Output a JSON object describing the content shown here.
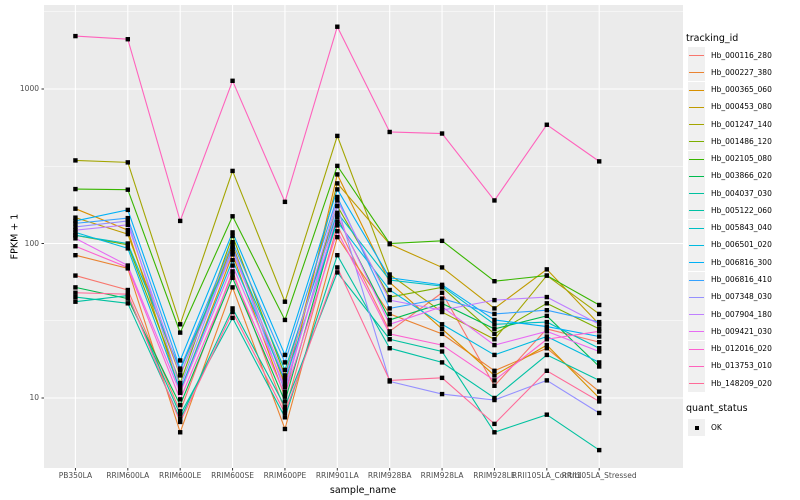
{
  "figure": {
    "xlabel": "sample_name",
    "ylabel": "FPKM + 1"
  },
  "legend": {
    "tracking_title": "tracking_id",
    "quant_title": "quant_status",
    "quant_items": [
      "OK"
    ]
  },
  "chart_data": {
    "type": "line",
    "title": "",
    "xlabel": "sample_name",
    "ylabel": "FPKM + 1",
    "y_scale": "log10",
    "y_ticks": [
      10,
      100,
      1000
    ],
    "ylim": [
      2.5,
      3500
    ],
    "grid": "white major and minor gridlines on gray panel",
    "legend_position": "right",
    "legend_title": "tracking_id",
    "point_marker": "small black square (quant_status = OK)",
    "categories": [
      "PB350LA",
      "RRIM600LA",
      "RRIM600LE",
      "RRIM600SE",
      "RRIM600PE",
      "RRIM901LA",
      "RRIM928BA",
      "RRIM928LA",
      "RRIM928LE",
      "RRII105LA_Control",
      "RRII105LA_Stressed"
    ],
    "series": [
      {
        "name": "Hb_000116_280",
        "color": "#F8766D",
        "values": [
          62,
          50,
          8.2,
          66,
          8.3,
          131,
          27,
          48,
          12,
          28,
          23
        ]
      },
      {
        "name": "Hb_000227_380",
        "color": "#EA8331",
        "values": [
          84,
          69,
          6,
          52,
          6.3,
          110,
          35,
          26,
          15,
          21,
          11
        ]
      },
      {
        "name": "Hb_000365_060",
        "color": "#D89000",
        "values": [
          168,
          122,
          11,
          85,
          10.2,
          280,
          56,
          28,
          14,
          22,
          10
        ]
      },
      {
        "name": "Hb_000453_080",
        "color": "#C09B00",
        "values": [
          147,
          115,
          14,
          98,
          12.2,
          245,
          99,
          70,
          38,
          68,
          30
        ]
      },
      {
        "name": "Hb_001247_140",
        "color": "#A3A500",
        "values": [
          345,
          335,
          30,
          295,
          42,
          497,
          63,
          36,
          24,
          62,
          35
        ]
      },
      {
        "name": "Hb_001486_120",
        "color": "#7CAE00",
        "values": [
          113,
          98,
          12.5,
          112,
          14,
          175,
          45,
          52,
          26,
          41,
          28
        ]
      },
      {
        "name": "Hb_002105_080",
        "color": "#39B600",
        "values": [
          225,
          223,
          26.5,
          150,
          32,
          318,
          100,
          104,
          57,
          62,
          40
        ]
      },
      {
        "name": "Hb_003866_020",
        "color": "#00BB4E",
        "values": [
          52,
          44,
          9,
          60,
          9.5,
          148,
          32,
          41,
          28,
          34,
          16
        ]
      },
      {
        "name": "Hb_004037_030",
        "color": "#00C19F",
        "values": [
          45,
          41,
          7.3,
          38,
          8.8,
          65,
          24,
          20,
          6,
          7.8,
          4.6
        ]
      },
      {
        "name": "Hb_005122_060",
        "color": "#00C1A3",
        "values": [
          42,
          46,
          7.8,
          33,
          7.5,
          84,
          21,
          17,
          10,
          19,
          13
        ]
      },
      {
        "name": "Hb_005843_040",
        "color": "#00BFC4",
        "values": [
          113,
          100,
          15.2,
          92,
          15.2,
          158,
          58,
          53,
          30,
          31,
          21
        ]
      },
      {
        "name": "Hb_006501_020",
        "color": "#00BAE0",
        "values": [
          118,
          93,
          11.2,
          78,
          13,
          138,
          50,
          30,
          19,
          25,
          17
        ]
      },
      {
        "name": "Hb_006816_300",
        "color": "#00B0F6",
        "values": [
          140,
          165,
          17.5,
          118,
          19,
          224,
          60,
          54,
          32,
          29,
          25
        ]
      },
      {
        "name": "Hb_006816_410",
        "color": "#35A2FF",
        "values": [
          135,
          146,
          15.5,
          102,
          17,
          200,
          38,
          44,
          35,
          37,
          31
        ]
      },
      {
        "name": "Hb_007348_030",
        "color": "#9590FF",
        "values": [
          128,
          140,
          11.8,
          95,
          11,
          175,
          12.8,
          10.6,
          9.7,
          13,
          8
        ]
      },
      {
        "name": "Hb_007904_180",
        "color": "#BF80FF",
        "values": [
          122,
          132,
          14.2,
          88,
          13.5,
          190,
          43,
          37,
          43,
          45,
          30
        ]
      },
      {
        "name": "Hb_009421_030",
        "color": "#E76BF3",
        "values": [
          108,
          72,
          10.8,
          72,
          11.8,
          152,
          30,
          39,
          22,
          27,
          20
        ]
      },
      {
        "name": "Hb_012016_020",
        "color": "#FD61D1",
        "values": [
          96,
          70,
          9.8,
          63,
          10.5,
          120,
          26,
          22,
          13,
          24,
          27
        ]
      },
      {
        "name": "Hb_013753_010",
        "color": "#FF62BC",
        "values": [
          2200,
          2100,
          140,
          1130,
          186,
          2530,
          527,
          515,
          190,
          587,
          340
        ]
      },
      {
        "name": "Hb_148209_020",
        "color": "#FF6A98",
        "values": [
          48,
          47,
          7,
          36,
          8,
          70,
          13,
          13.5,
          6.8,
          15,
          9.5
        ]
      }
    ],
    "quant_status_legend": {
      "title": "quant_status",
      "items": [
        "OK"
      ]
    }
  }
}
